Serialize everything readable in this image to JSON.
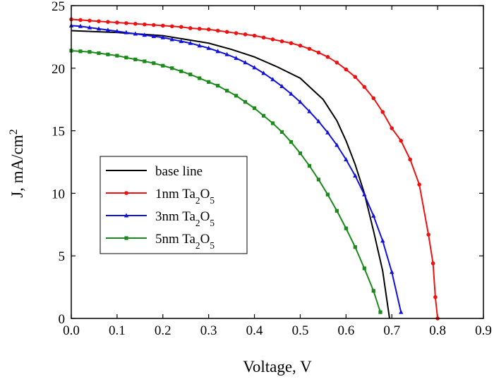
{
  "chart_data": {
    "type": "line",
    "xlabel": "Voltage, V",
    "ylabel": "J, mA/cm2",
    "xlim": [
      0,
      0.9
    ],
    "ylim": [
      0,
      25
    ],
    "xticks": [
      {
        "value": 0,
        "label": "0.0"
      },
      0.1,
      0.2,
      0.3,
      0.4,
      0.5,
      0.6,
      0.7,
      0.8,
      0.9
    ],
    "yticks": [
      0,
      5,
      10,
      15,
      20,
      25
    ],
    "legend": "lower-left",
    "series": [
      {
        "name": "base line",
        "color": "#000000",
        "marker": null,
        "x": [
          0,
          0.1,
          0.2,
          0.3,
          0.35,
          0.4,
          0.45,
          0.5,
          0.55,
          0.58,
          0.6,
          0.62,
          0.64,
          0.66,
          0.68,
          0.695
        ],
        "values": [
          23.0,
          22.85,
          22.6,
          22.0,
          21.5,
          20.9,
          20.1,
          19.2,
          17.5,
          15.8,
          14.2,
          12.3,
          10.0,
          7.0,
          3.8,
          0
        ]
      },
      {
        "name": "1nm Ta2O5",
        "color": "#ee1111",
        "marker": "circle",
        "x": [
          0,
          0.02,
          0.04,
          0.06,
          0.08,
          0.1,
          0.12,
          0.14,
          0.16,
          0.18,
          0.2,
          0.22,
          0.24,
          0.26,
          0.28,
          0.3,
          0.32,
          0.34,
          0.36,
          0.38,
          0.4,
          0.42,
          0.44,
          0.46,
          0.48,
          0.5,
          0.52,
          0.54,
          0.56,
          0.58,
          0.6,
          0.62,
          0.64,
          0.66,
          0.68,
          0.7,
          0.72,
          0.74,
          0.76,
          0.78,
          0.79,
          0.795,
          0.8
        ],
        "values": [
          23.9,
          23.85,
          23.8,
          23.75,
          23.7,
          23.65,
          23.6,
          23.55,
          23.5,
          23.45,
          23.4,
          23.35,
          23.3,
          23.2,
          23.15,
          23.1,
          23.0,
          22.9,
          22.8,
          22.7,
          22.6,
          22.45,
          22.3,
          22.15,
          22.0,
          21.8,
          21.55,
          21.25,
          20.9,
          20.45,
          19.9,
          19.3,
          18.5,
          17.6,
          16.5,
          15.2,
          14.2,
          12.7,
          10.7,
          6.7,
          4.4,
          1.7,
          0
        ]
      },
      {
        "name": "3nm Ta2O5",
        "color": "#1111dd",
        "marker": "triangle",
        "x": [
          0,
          0.02,
          0.04,
          0.06,
          0.08,
          0.1,
          0.12,
          0.14,
          0.16,
          0.18,
          0.2,
          0.22,
          0.24,
          0.26,
          0.28,
          0.3,
          0.32,
          0.34,
          0.36,
          0.38,
          0.4,
          0.42,
          0.44,
          0.46,
          0.48,
          0.5,
          0.52,
          0.54,
          0.56,
          0.58,
          0.6,
          0.62,
          0.64,
          0.66,
          0.68,
          0.7,
          0.72
        ],
        "values": [
          23.4,
          23.35,
          23.25,
          23.15,
          23.05,
          22.95,
          22.85,
          22.75,
          22.65,
          22.55,
          22.45,
          22.3,
          22.15,
          22.0,
          21.8,
          21.6,
          21.35,
          21.1,
          20.8,
          20.45,
          20.05,
          19.6,
          19.1,
          18.55,
          17.95,
          17.3,
          16.55,
          15.75,
          14.85,
          13.85,
          12.7,
          11.4,
          9.9,
          8.2,
          6.2,
          3.7,
          0.5
        ]
      },
      {
        "name": "5nm Ta2O5",
        "color": "#1a8a1a",
        "marker": "square",
        "x": [
          0,
          0.02,
          0.04,
          0.06,
          0.08,
          0.1,
          0.12,
          0.14,
          0.16,
          0.18,
          0.2,
          0.22,
          0.24,
          0.26,
          0.28,
          0.3,
          0.32,
          0.34,
          0.36,
          0.38,
          0.4,
          0.42,
          0.44,
          0.46,
          0.48,
          0.5,
          0.52,
          0.54,
          0.56,
          0.58,
          0.6,
          0.62,
          0.64,
          0.66,
          0.675
        ],
        "values": [
          21.4,
          21.35,
          21.3,
          21.2,
          21.1,
          21.0,
          20.85,
          20.7,
          20.55,
          20.4,
          20.2,
          20.0,
          19.75,
          19.5,
          19.2,
          18.9,
          18.6,
          18.2,
          17.8,
          17.3,
          16.8,
          16.2,
          15.6,
          14.9,
          14.1,
          13.2,
          12.2,
          11.1,
          9.9,
          8.6,
          7.2,
          5.7,
          4.0,
          2.2,
          0.5
        ]
      }
    ]
  }
}
